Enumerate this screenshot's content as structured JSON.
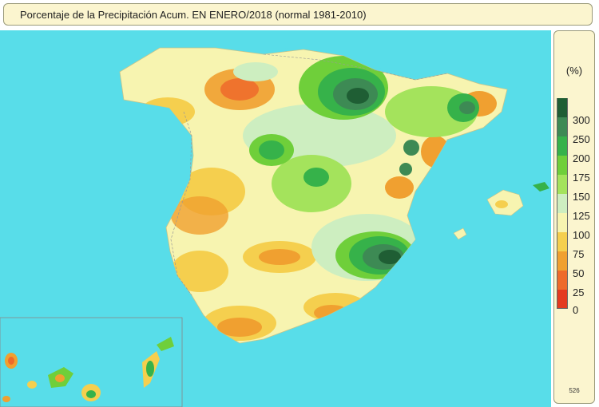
{
  "header": {
    "title": "Porcentaje de la Precipitación Acum. EN  ENERO/2018  (normal 1981-2010)"
  },
  "legend": {
    "unit": "(%)",
    "footer": "526",
    "classes": [
      {
        "label": "300",
        "color": "#1f5e34"
      },
      {
        "label": "250",
        "color": "#3d8a54"
      },
      {
        "label": "200",
        "color": "#36b24a"
      },
      {
        "label": "175",
        "color": "#6fcf3a"
      },
      {
        "label": "150",
        "color": "#a4e35c"
      },
      {
        "label": "125",
        "color": "#cdeec0"
      },
      {
        "label": "100",
        "color": "#f7f4b0"
      },
      {
        "label": "75",
        "color": "#f5cf4e"
      },
      {
        "label": "50",
        "color": "#f0a030"
      },
      {
        "label": "25",
        "color": "#ee6a2a"
      },
      {
        "label": "0",
        "color": "#e43a20"
      }
    ]
  },
  "colors": {
    "sea": "#58dde9",
    "land_base": "#f7f4b0",
    "frame_fill": "#fbf5cf"
  }
}
